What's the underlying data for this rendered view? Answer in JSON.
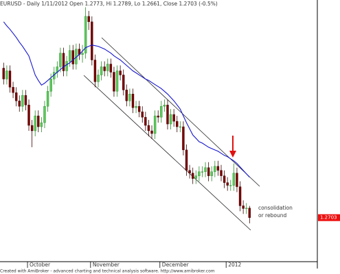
{
  "chart_data": {
    "type": "candlestick",
    "title": "EURUSD - Daily 1/11/2012 Open 1.2773, Hi 1.2789, Lo 1.2661, Close 1.2703 (-0.5%)",
    "footer": "Created with AmiBroker - advanced charting and technical analysis software. http://www.amibroker.com",
    "annotation": [
      "consolidation",
      "or rebound"
    ],
    "categories": [
      null,
      null,
      null,
      null,
      null,
      null,
      null,
      null,
      "October",
      null,
      null,
      null,
      null,
      null,
      null,
      null,
      null,
      null,
      null,
      null,
      null,
      null,
      null,
      null,
      null,
      null,
      null,
      null,
      "November",
      null,
      null,
      null,
      null,
      null,
      null,
      null,
      null,
      null,
      null,
      null,
      null,
      null,
      null,
      null,
      null,
      null,
      null,
      null,
      null,
      null,
      "December",
      null,
      null,
      null,
      null,
      null,
      null,
      null,
      null,
      null,
      null,
      null,
      null,
      null,
      null,
      null,
      null,
      null,
      null,
      null,
      null,
      "2012",
      null,
      null,
      null,
      null,
      null,
      null,
      null
    ],
    "open": [
      1.38,
      1.372,
      1.378,
      1.366,
      1.362,
      1.356,
      1.352,
      1.36,
      1.353,
      1.338,
      1.334,
      1.345,
      1.337,
      1.34,
      1.352,
      1.363,
      1.372,
      1.377,
      1.381,
      1.391,
      1.378,
      1.385,
      1.393,
      1.383,
      1.394,
      1.39,
      1.391,
      1.418,
      1.414,
      1.386,
      1.37,
      1.375,
      1.381,
      1.378,
      1.383,
      1.377,
      1.363,
      1.378,
      1.375,
      1.364,
      1.356,
      1.361,
      1.351,
      1.352,
      1.348,
      1.344,
      1.338,
      1.334,
      1.332,
      1.345,
      1.344,
      1.352,
      1.353,
      1.339,
      1.346,
      1.341,
      1.337,
      1.337,
      1.32,
      1.305,
      1.303,
      1.299,
      1.301,
      1.304,
      1.304,
      1.307,
      1.301,
      1.304,
      1.308,
      1.305,
      1.301,
      1.296,
      1.294,
      1.294,
      1.303,
      1.293,
      1.279,
      1.277,
      1.2773
    ],
    "high": [
      1.384,
      1.382,
      1.382,
      1.37,
      1.366,
      1.36,
      1.364,
      1.364,
      1.357,
      1.342,
      1.349,
      1.349,
      1.344,
      1.356,
      1.367,
      1.376,
      1.381,
      1.385,
      1.395,
      1.395,
      1.389,
      1.397,
      1.397,
      1.398,
      1.398,
      1.397,
      1.4247,
      1.422,
      1.418,
      1.39,
      1.379,
      1.385,
      1.385,
      1.387,
      1.387,
      1.381,
      1.382,
      1.382,
      1.379,
      1.368,
      1.365,
      1.365,
      1.356,
      1.356,
      1.352,
      1.348,
      1.342,
      1.338,
      1.349,
      1.349,
      1.356,
      1.357,
      1.357,
      1.35,
      1.35,
      1.345,
      1.341,
      1.341,
      1.324,
      1.309,
      1.307,
      1.305,
      1.308,
      1.308,
      1.311,
      1.311,
      1.308,
      1.312,
      1.312,
      1.309,
      1.305,
      1.3,
      1.298,
      1.31,
      1.307,
      1.297,
      1.283,
      1.281,
      1.2789
    ],
    "low": [
      1.368,
      1.368,
      1.362,
      1.358,
      1.352,
      1.348,
      1.348,
      1.349,
      1.334,
      1.322,
      1.33,
      1.333,
      1.333,
      1.336,
      1.348,
      1.359,
      1.368,
      1.373,
      1.377,
      1.374,
      1.374,
      1.381,
      1.379,
      1.379,
      1.386,
      1.384,
      1.387,
      1.408,
      1.382,
      1.366,
      1.366,
      1.371,
      1.374,
      1.374,
      1.373,
      1.359,
      1.359,
      1.371,
      1.36,
      1.352,
      1.352,
      1.347,
      1.347,
      1.344,
      1.34,
      1.334,
      1.33,
      1.328,
      1.328,
      1.34,
      1.34,
      1.348,
      1.335,
      1.335,
      1.337,
      1.333,
      1.333,
      1.316,
      1.301,
      1.299,
      1.295,
      1.295,
      1.297,
      1.3,
      1.3,
      1.297,
      1.297,
      1.3,
      1.301,
      1.297,
      1.292,
      1.29,
      1.29,
      1.29,
      1.289,
      1.275,
      1.273,
      1.273,
      1.2661
    ],
    "close": [
      1.372,
      1.378,
      1.366,
      1.362,
      1.356,
      1.352,
      1.36,
      1.353,
      1.338,
      1.334,
      1.345,
      1.337,
      1.34,
      1.352,
      1.363,
      1.372,
      1.377,
      1.381,
      1.391,
      1.378,
      1.385,
      1.393,
      1.383,
      1.394,
      1.39,
      1.391,
      1.418,
      1.414,
      1.386,
      1.37,
      1.375,
      1.381,
      1.378,
      1.383,
      1.377,
      1.363,
      1.378,
      1.375,
      1.364,
      1.356,
      1.361,
      1.351,
      1.352,
      1.348,
      1.344,
      1.338,
      1.334,
      1.332,
      1.345,
      1.344,
      1.352,
      1.353,
      1.339,
      1.346,
      1.341,
      1.337,
      1.337,
      1.32,
      1.305,
      1.303,
      1.299,
      1.301,
      1.304,
      1.304,
      1.307,
      1.301,
      1.304,
      1.308,
      1.305,
      1.301,
      1.296,
      1.294,
      1.294,
      1.303,
      1.293,
      1.279,
      1.277,
      1.2773,
      1.2703
    ],
    "up_color": "#5cc85c",
    "down_color": "#7a0000",
    "overlay": {
      "color": "#1515d0",
      "values": [
        1.414,
        1.411,
        1.4085,
        1.4055,
        1.4025,
        1.399,
        1.396,
        1.3925,
        1.389,
        1.382,
        1.375,
        1.371,
        1.3675,
        1.369,
        1.371,
        1.373,
        1.375,
        1.377,
        1.379,
        1.381,
        1.3825,
        1.384,
        1.386,
        1.388,
        1.39,
        1.3925,
        1.395,
        1.396,
        1.397,
        1.3965,
        1.396,
        1.395,
        1.394,
        1.3925,
        1.391,
        1.389,
        1.3875,
        1.386,
        1.384,
        1.382,
        1.38,
        1.378,
        1.3765,
        1.375,
        1.3735,
        1.372,
        1.371,
        1.3695,
        1.368,
        1.3665,
        1.365,
        1.363,
        1.361,
        1.3585,
        1.356,
        1.353,
        1.35,
        1.345,
        1.34,
        1.3355,
        1.331,
        1.3285,
        1.326,
        1.325,
        1.3235,
        1.322,
        1.321,
        1.32,
        1.319,
        1.3175,
        1.316,
        1.315,
        1.3135,
        1.312,
        1.31,
        1.3075,
        1.305,
        1.3025,
        1.3
      ]
    },
    "ylim": [
      1.238,
      1.43
    ]
  }
}
